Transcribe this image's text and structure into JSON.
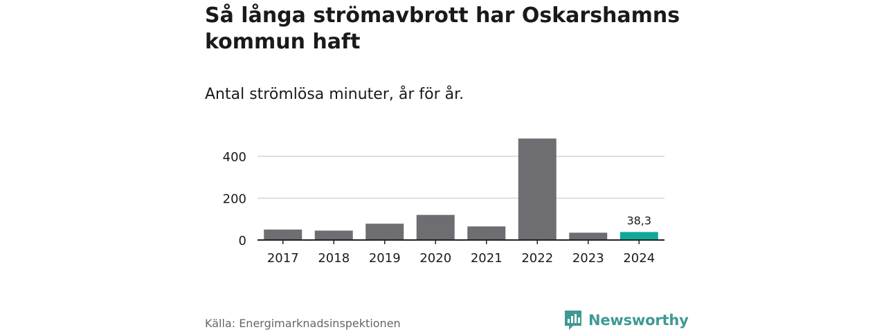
{
  "title": "Så långa strömavbrott har Oskarshamns kommun haft",
  "subtitle": "Antal strömlösa minuter, år för år.",
  "source": "Källa: Energimarknadsinspektionen",
  "brand": {
    "name": "Newsworthy",
    "logo_icon": "newsworthy-logo-icon",
    "color": "#3e9a91"
  },
  "colors": {
    "bar_default": "#6e6d72",
    "bar_highlight": "#10a99a",
    "grid": "#d4d4d4",
    "axis": "#222222",
    "text": "#1a1a1a"
  },
  "chart_data": {
    "type": "bar",
    "categories": [
      "2017",
      "2018",
      "2019",
      "2020",
      "2021",
      "2022",
      "2023",
      "2024"
    ],
    "values": [
      50,
      45,
      78,
      120,
      65,
      485,
      35,
      38.3
    ],
    "highlight_index": 7,
    "value_labels": {
      "7": "38,3"
    },
    "yticks": [
      0,
      200,
      400
    ],
    "ylim": [
      0,
      500
    ],
    "grid": true,
    "title": "",
    "xlabel": "",
    "ylabel": ""
  }
}
